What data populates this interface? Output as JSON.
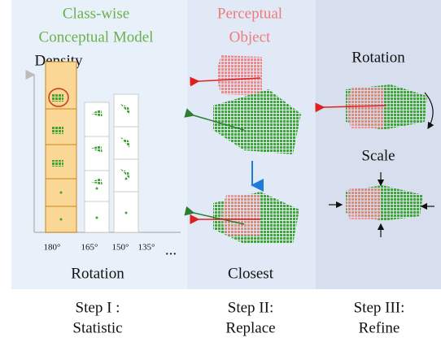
{
  "panels": [
    {
      "title": [
        "Class-wise",
        "Conceptual Model"
      ],
      "axis_label": "Density",
      "ticks": [
        "180°",
        "165°",
        "150°",
        "135°"
      ],
      "ellipsis": "...",
      "caption": "Rotation",
      "step": [
        "Step I :",
        "Statistic"
      ]
    },
    {
      "title": [
        "Perceptual",
        "Object"
      ],
      "caption": "Closest",
      "step": [
        "Step II:",
        "Replace"
      ]
    },
    {
      "labels": [
        "Rotation",
        "Scale"
      ],
      "step": [
        "Step III:",
        "Refine"
      ]
    }
  ]
}
